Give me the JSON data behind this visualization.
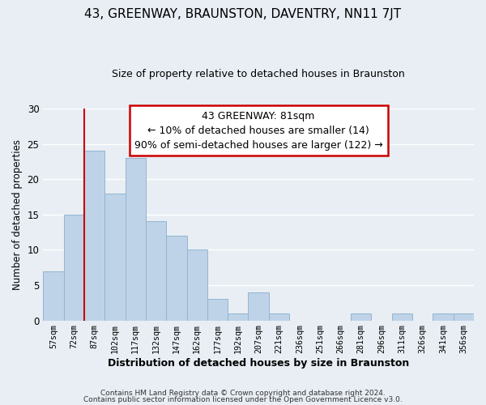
{
  "title": "43, GREENWAY, BRAUNSTON, DAVENTRY, NN11 7JT",
  "subtitle": "Size of property relative to detached houses in Braunston",
  "xlabel": "Distribution of detached houses by size in Braunston",
  "ylabel": "Number of detached properties",
  "bin_labels": [
    "57sqm",
    "72sqm",
    "87sqm",
    "102sqm",
    "117sqm",
    "132sqm",
    "147sqm",
    "162sqm",
    "177sqm",
    "192sqm",
    "207sqm",
    "221sqm",
    "236sqm",
    "251sqm",
    "266sqm",
    "281sqm",
    "296sqm",
    "311sqm",
    "326sqm",
    "341sqm",
    "356sqm"
  ],
  "bar_values": [
    7,
    15,
    24,
    18,
    23,
    14,
    12,
    10,
    3,
    1,
    4,
    1,
    0,
    0,
    0,
    1,
    0,
    1,
    0,
    1,
    1
  ],
  "bar_color": "#bed3e8",
  "bar_edge_color": "#93b5d0",
  "vline_color": "#cc0000",
  "ylim": [
    0,
    30
  ],
  "yticks": [
    0,
    5,
    10,
    15,
    20,
    25,
    30
  ],
  "annotation_text": "43 GREENWAY: 81sqm\n← 10% of detached houses are smaller (14)\n90% of semi-detached houses are larger (122) →",
  "annotation_box_color": "#ffffff",
  "annotation_box_edge": "#cc0000",
  "footer_line1": "Contains HM Land Registry data © Crown copyright and database right 2024.",
  "footer_line2": "Contains public sector information licensed under the Open Government Licence v3.0.",
  "background_color": "#e8eef4",
  "grid_color": "#ffffff"
}
